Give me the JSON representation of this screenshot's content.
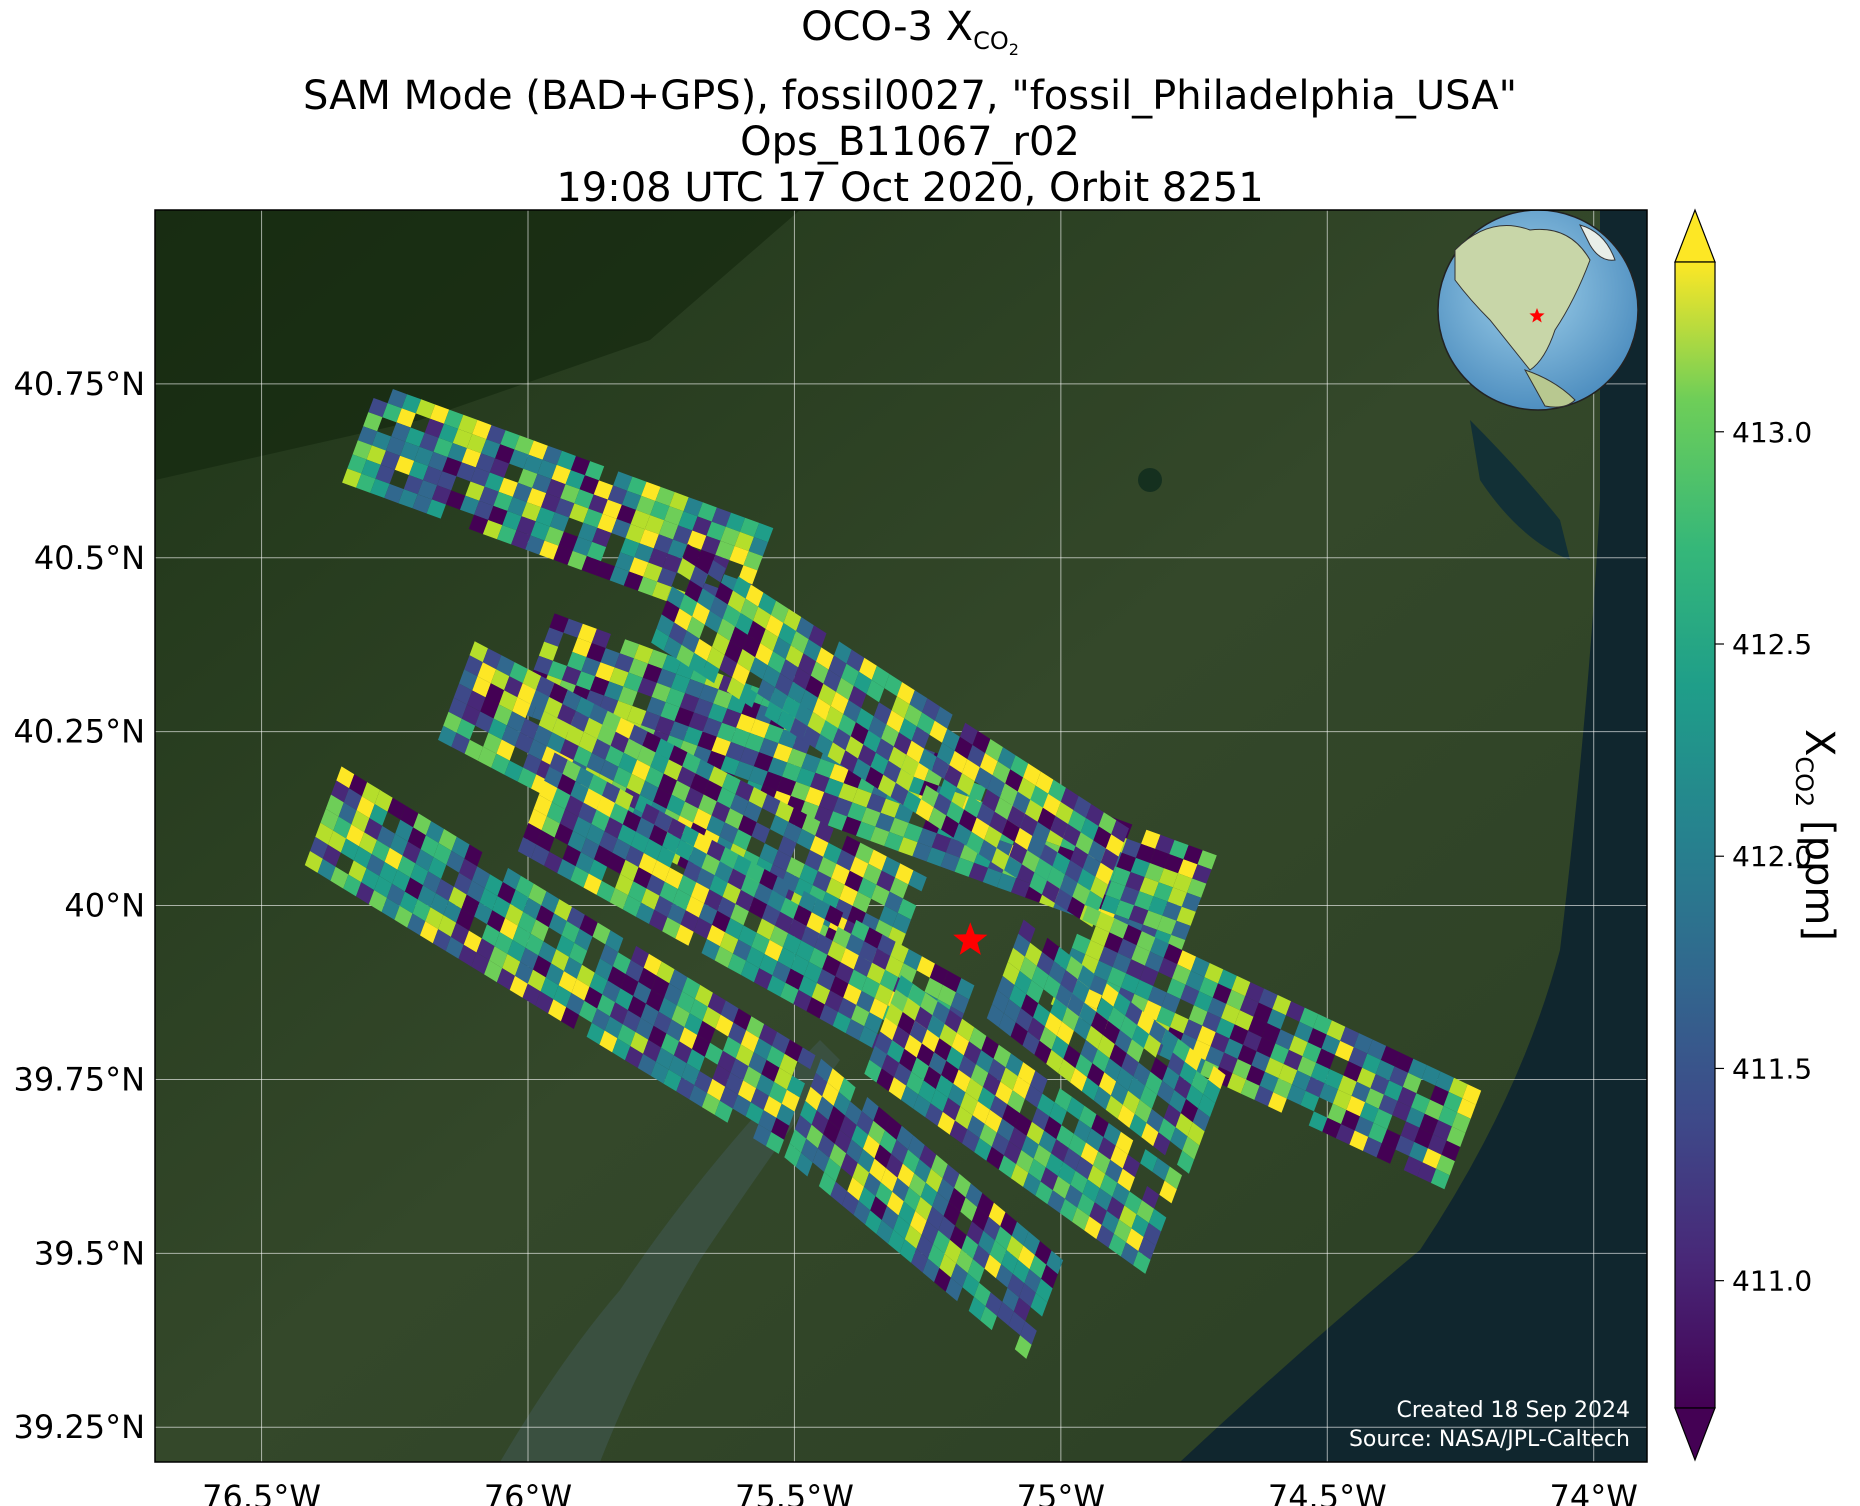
{
  "title": {
    "line1_prefix": "OCO-3 X",
    "line1_sub": "CO",
    "line1_sub2": "2",
    "line2": "SAM Mode (BAD+GPS), fossil0027, \"fossil_Philadelphia_USA\"",
    "line3": "Ops_B11067_r02",
    "line4": "19:08 UTC 17 Oct 2020, Orbit 8251"
  },
  "axes": {
    "x_ticks": [
      "76.5°W",
      "76°W",
      "75.5°W",
      "75°W",
      "74.5°W",
      "74°W"
    ],
    "y_ticks": [
      "40.75°N",
      "40.5°N",
      "40.25°N",
      "40°N",
      "39.75°N",
      "39.5°N",
      "39.25°N"
    ],
    "lon_range": [
      -76.7,
      -73.9
    ],
    "lat_range": [
      39.2,
      41.0
    ]
  },
  "colorbar": {
    "label_prefix": "X",
    "label_sub": "CO2",
    "label_suffix": " [ppm]",
    "ticks": [
      "413.0",
      "412.5",
      "412.0",
      "411.5",
      "411.0"
    ],
    "range": [
      410.7,
      413.4
    ],
    "colormap": "viridis",
    "extend": "both"
  },
  "target": {
    "name": "fossil_Philadelphia_USA",
    "lon": -75.17,
    "lat": 39.95,
    "marker": "red-star",
    "color": "#ff0000"
  },
  "swaths": [
    {
      "id": "s1",
      "lon": [
        -76.28,
        -75.53
      ],
      "lat": [
        40.75,
        40.54
      ]
    },
    {
      "id": "s2",
      "lon": [
        -75.95,
        -74.7
      ],
      "lat": [
        40.42,
        40.07
      ]
    },
    {
      "id": "s3",
      "lon": [
        -75.7,
        -74.85
      ],
      "lat": [
        40.52,
        40.1
      ]
    },
    {
      "id": "s4",
      "lon": [
        -76.1,
        -75.25
      ],
      "lat": [
        40.38,
        40.04
      ]
    },
    {
      "id": "s5",
      "lon": [
        -75.95,
        -75.15
      ],
      "lat": [
        40.22,
        39.88
      ]
    },
    {
      "id": "s6",
      "lon": [
        -76.35,
        -75.45
      ],
      "lat": [
        40.2,
        39.78
      ]
    },
    {
      "id": "s7",
      "lon": [
        -74.95,
        -74.2
      ],
      "lat": [
        40.0,
        39.73
      ]
    },
    {
      "id": "s8",
      "lon": [
        -75.07,
        -74.68
      ],
      "lat": [
        39.98,
        39.75
      ]
    },
    {
      "id": "s9",
      "lon": [
        -75.3,
        -74.75
      ],
      "lat": [
        39.9,
        39.6
      ]
    },
    {
      "id": "s10",
      "lon": [
        -75.45,
        -74.98
      ],
      "lat": [
        39.78,
        39.48
      ]
    }
  ],
  "inset": {
    "name": "globe-inset",
    "marker": "red-star"
  },
  "credit": {
    "created": "Created 18 Sep 2024",
    "source": "Source: NASA/JPL-Caltech"
  },
  "colors": {
    "marker": "#ff0000",
    "grid": "#ffffff",
    "land_dark": "#233a1c",
    "ocean": "#10262e"
  }
}
